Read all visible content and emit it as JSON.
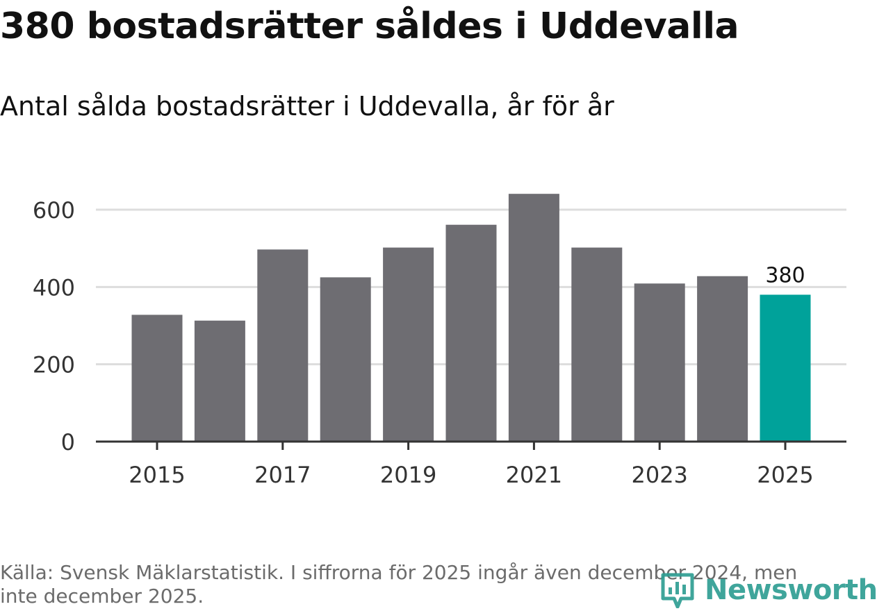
{
  "title": "380 bostadsrätter såldes i Uddevalla",
  "subtitle": "Antal sålda bostadsrätter i Uddevalla, år för år",
  "source": "Källa: Svensk Mäklarstatistik. I siffrorna för 2025 ingår även december 2024, men inte december 2025.",
  "logo": {
    "name": "Newsworthy",
    "icon": "bar-chart-pin-icon"
  },
  "colors": {
    "bar": "#6e6d72",
    "highlight": "#00a29a",
    "grid": "#dddddd",
    "axis": "#333333",
    "logo": "#2f9e93"
  },
  "chart_data": {
    "type": "bar",
    "title": "Antal sålda bostadsrätter i Uddevalla, år för år",
    "categories": [
      "2015",
      "2016",
      "2017",
      "2018",
      "2019",
      "2020",
      "2021",
      "2022",
      "2023",
      "2024",
      "2025"
    ],
    "values": [
      328,
      313,
      497,
      425,
      502,
      561,
      641,
      502,
      409,
      428,
      380
    ],
    "highlight_index": 10,
    "highlight_label": "380",
    "xticks": [
      "2015",
      "2017",
      "2019",
      "2021",
      "2023",
      "2025"
    ],
    "yticks": [
      0,
      200,
      400,
      600
    ],
    "ylim": [
      0,
      650
    ],
    "grid": true,
    "xlabel": "",
    "ylabel": ""
  }
}
